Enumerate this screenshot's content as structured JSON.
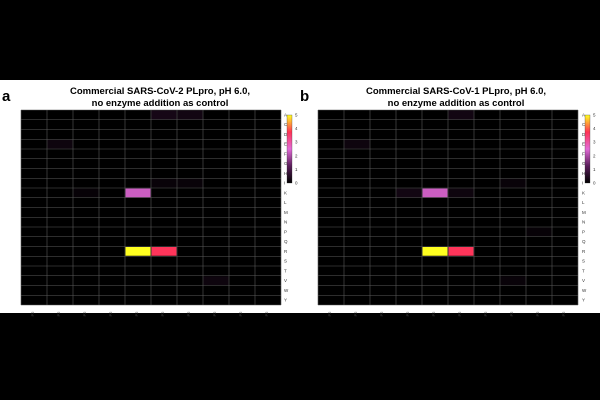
{
  "panels": [
    {
      "label": "a",
      "title_line1": "Commercial SARS-CoV-2 PLpro, pH 6.0,",
      "title_line2": "no enzyme addition as control"
    },
    {
      "label": "b",
      "title_line1": "Commercial SARS-CoV-1 PLpro, pH 6.0,",
      "title_line2": "no enzyme addition as control"
    }
  ],
  "chart_data": [
    {
      "type": "heatmap",
      "title": "Commercial SARS-CoV-2 PLpro, pH 6.0, no enzyme addition as control",
      "rows": [
        "A",
        "C",
        "D",
        "E",
        "F",
        "G",
        "H",
        "I",
        "K",
        "L",
        "M",
        "N",
        "P",
        "Q",
        "R",
        "S",
        "T",
        "V",
        "W",
        "Y"
      ],
      "columns": [
        "P2",
        "P2",
        "P2",
        "P2",
        "P2",
        "P2",
        "P2",
        "P2",
        "P2",
        "P2"
      ],
      "colorbar_ticks": [
        "5",
        "4",
        "3",
        "2",
        "1",
        "0"
      ],
      "colorbar_range": [
        0,
        5
      ],
      "cells": [
        {
          "row": "A",
          "col": 5,
          "value": 0.3
        },
        {
          "row": "A",
          "col": 6,
          "value": 0.25
        },
        {
          "row": "E",
          "col": 1,
          "value": 0.2
        },
        {
          "row": "I",
          "col": 5,
          "value": 0.12
        },
        {
          "row": "I",
          "col": 6,
          "value": 0.12
        },
        {
          "row": "K",
          "col": 4,
          "value": 2.3
        },
        {
          "row": "K",
          "col": 2,
          "value": 0.1
        },
        {
          "row": "R",
          "col": 4,
          "value": 5.0
        },
        {
          "row": "R",
          "col": 5,
          "value": 3.7
        },
        {
          "row": "V",
          "col": 7,
          "value": 0.2
        }
      ]
    },
    {
      "type": "heatmap",
      "title": "Commercial SARS-CoV-1 PLpro, pH 6.0, no enzyme addition as control",
      "rows": [
        "A",
        "C",
        "D",
        "E",
        "F",
        "G",
        "H",
        "I",
        "K",
        "L",
        "M",
        "N",
        "P",
        "Q",
        "R",
        "S",
        "T",
        "V",
        "W",
        "Y"
      ],
      "columns": [
        "P2",
        "P2",
        "P2",
        "P2",
        "P2",
        "P2",
        "P2",
        "P2",
        "P2",
        "P2"
      ],
      "colorbar_ticks": [
        "5",
        "4",
        "3",
        "2",
        "1",
        "0"
      ],
      "colorbar_range": [
        0,
        5
      ],
      "cells": [
        {
          "row": "A",
          "col": 5,
          "value": 0.25
        },
        {
          "row": "E",
          "col": 1,
          "value": 0.2
        },
        {
          "row": "I",
          "col": 7,
          "value": 0.12
        },
        {
          "row": "K",
          "col": 3,
          "value": 0.25
        },
        {
          "row": "K",
          "col": 4,
          "value": 2.3
        },
        {
          "row": "K",
          "col": 5,
          "value": 0.2
        },
        {
          "row": "P",
          "col": 8,
          "value": 0.1
        },
        {
          "row": "R",
          "col": 4,
          "value": 5.0
        },
        {
          "row": "R",
          "col": 5,
          "value": 3.7
        },
        {
          "row": "V",
          "col": 7,
          "value": 0.12
        }
      ]
    }
  ]
}
